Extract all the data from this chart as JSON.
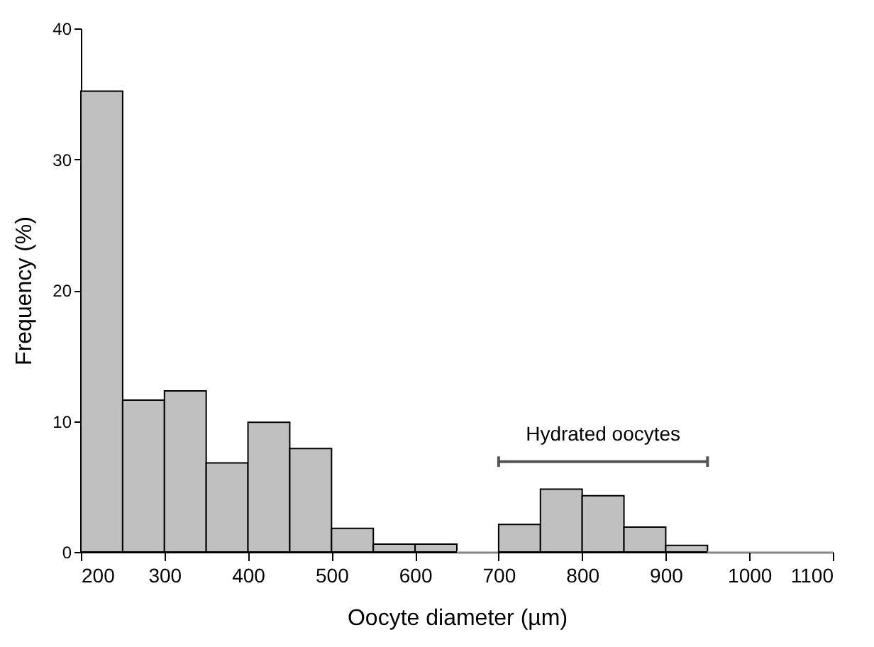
{
  "chart_data": {
    "type": "histogram",
    "xlabel": "Oocyte diameter (µm)",
    "ylabel": "Frequency (%)",
    "bins": [
      200,
      250,
      300,
      350,
      400,
      450,
      500,
      550,
      600,
      650,
      700,
      750,
      800,
      850,
      900,
      950,
      1000,
      1050,
      1100
    ],
    "values": [
      35.2,
      11.6,
      12.3,
      6.8,
      9.9,
      7.9,
      1.8,
      0.6,
      0.6,
      0,
      2.1,
      4.8,
      4.3,
      1.9,
      0.5,
      0,
      0,
      0
    ],
    "color": "#c0c0c0",
    "series": [
      {
        "type": "line",
        "color": "#555555",
        "x": [
          700,
          950
        ],
        "values": [
          6.9,
          6.9
        ],
        "errors": [
          0.4,
          0.4
        ]
      }
    ],
    "annotations": [
      {
        "text": "Hydrated oocytes",
        "x": 825,
        "y": 6.9
      }
    ],
    "xlim": [
      200,
      1100
    ],
    "xticks": [
      200,
      300,
      400,
      500,
      600,
      700,
      800,
      900,
      1000,
      1100
    ],
    "ylim": [
      0,
      40
    ],
    "yticks": [
      0,
      10,
      20,
      30,
      40
    ],
    "grid": false
  }
}
